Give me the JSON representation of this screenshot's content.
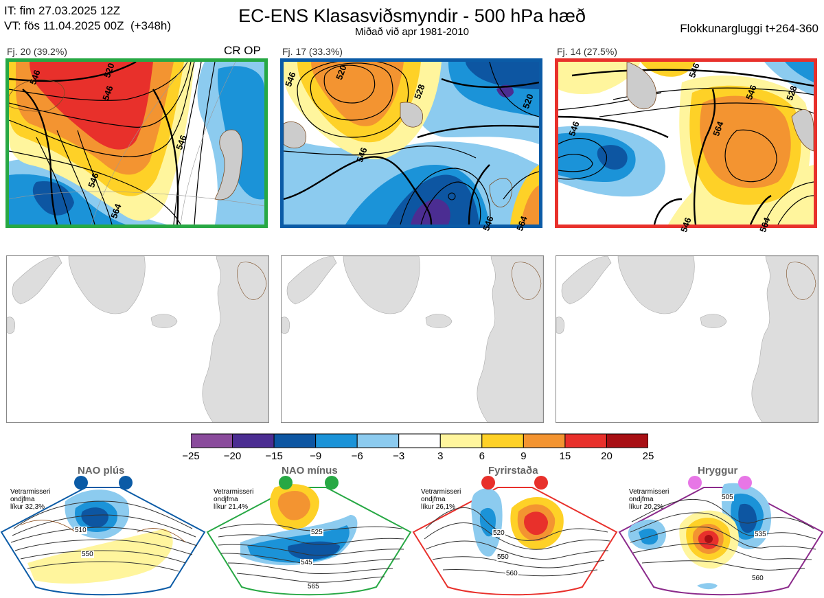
{
  "header": {
    "it_line": "IT: fim 27.03.2025 12Z",
    "vt_line": "VT: fös 11.04.2025 00Z  (+348h)",
    "title": "EC-ENS Klasasviðsmyndir - 500 hPa hæð",
    "subtitle": "Miðað við apr 1981-2010",
    "window": "Flokkunargluggi t+264-360"
  },
  "clusters": [
    {
      "label": "Fj. 20 (39.2%)",
      "border_color": "#27a844",
      "contour_labels": [
        "546",
        "520",
        "546",
        "546",
        "546",
        "564"
      ],
      "extra": "CR OP"
    },
    {
      "label": "Fj. 17 (33.3%)",
      "border_color": "#0b5ba6",
      "contour_labels": [
        "546",
        "520",
        "528",
        "520",
        "546",
        "546",
        "564"
      ]
    },
    {
      "label": "Fj. 14 (27.5%)",
      "border_color": "#e8302b",
      "contour_labels": [
        "546",
        "546",
        "528",
        "546",
        "564",
        "546",
        "564"
      ]
    }
  ],
  "colorbar": {
    "labels": [
      "−25",
      "−20",
      "−15",
      "−9",
      "−6",
      "−3",
      "3",
      "6",
      "9",
      "15",
      "20",
      "25"
    ],
    "colors": [
      "#8a4b9c",
      "#4b2d92",
      "#0d56a2",
      "#1b93d8",
      "#8ccbef",
      "#ffffff",
      "#fff59d",
      "#fed127",
      "#f39431",
      "#e8302b",
      "#a80f14"
    ]
  },
  "regimes": [
    {
      "name": "NAO plús",
      "season": "Vetrarmisseri",
      "basis": "ondjfma",
      "probability": "líkur 32,3%",
      "color": "#0b5ba6",
      "labels": [
        "510",
        "550"
      ]
    },
    {
      "name": "NAO mínus",
      "season": "Vetrarmisseri",
      "basis": "ondjfma",
      "probability": "líkur 21,4%",
      "color": "#27a844",
      "labels": [
        "525",
        "545",
        "565"
      ]
    },
    {
      "name": "Fyrirstaða",
      "season": "Vetrarmisseri",
      "basis": "ondjfma",
      "probability": "líkur 26,1%",
      "color": "#e8302b",
      "labels": [
        "520",
        "550",
        "560"
      ]
    },
    {
      "name": "Hryggur",
      "season": "Vetrarmisseri",
      "basis": "ondjfma",
      "probability": "líkur 20,2%",
      "color": "#e776e6",
      "labels": [
        "505",
        "535",
        "560"
      ]
    }
  ]
}
